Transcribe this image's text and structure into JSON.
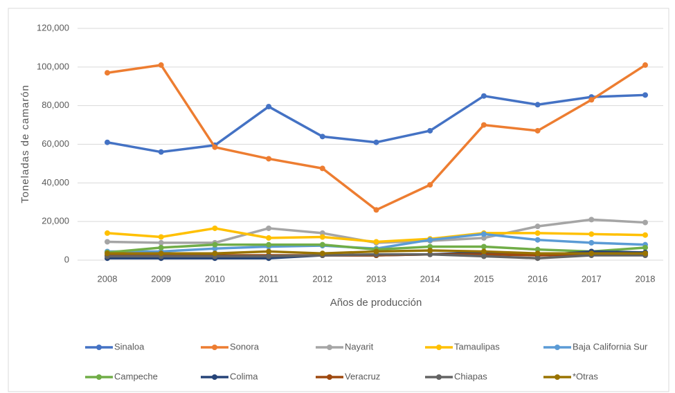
{
  "chart_data": {
    "type": "line",
    "x_label": "Años de producción",
    "y_label": "Toneladas de camarón",
    "categories": [
      "2008",
      "2009",
      "2010",
      "2011",
      "2012",
      "2013",
      "2014",
      "2015",
      "2016",
      "2017",
      "2018"
    ],
    "series": [
      {
        "name": "Sinaloa",
        "color": "#4472c4",
        "values": [
          61000,
          56000,
          59500,
          79500,
          64000,
          61000,
          67000,
          85000,
          80500,
          84500,
          85500
        ]
      },
      {
        "name": "Sonora",
        "color": "#ed7d31",
        "values": [
          97000,
          101000,
          58500,
          52500,
          47500,
          26000,
          39000,
          70000,
          67000,
          83000,
          101000
        ]
      },
      {
        "name": "Nayarit",
        "color": "#a5a5a5",
        "values": [
          9500,
          9000,
          9000,
          16500,
          14000,
          9000,
          10000,
          11500,
          17500,
          21000,
          19500
        ]
      },
      {
        "name": "Tamaulipas",
        "color": "#ffc000",
        "values": [
          14000,
          12000,
          16500,
          11500,
          12000,
          9500,
          11000,
          14000,
          14000,
          13500,
          13000
        ]
      },
      {
        "name": "Baja California Sur",
        "color": "#5b9bd5",
        "values": [
          4500,
          4500,
          6000,
          7000,
          7500,
          6000,
          10500,
          13500,
          10500,
          9000,
          8000
        ]
      },
      {
        "name": "Campeche",
        "color": "#70ad47",
        "values": [
          4000,
          6500,
          8000,
          8000,
          8000,
          5500,
          7000,
          7000,
          5500,
          4500,
          6500
        ]
      },
      {
        "name": "Colima",
        "color": "#264478",
        "values": [
          1000,
          1000,
          1000,
          1000,
          2500,
          2500,
          3000,
          4000,
          2500,
          4500,
          4000
        ]
      },
      {
        "name": "Veracruz",
        "color": "#9e480e",
        "values": [
          2500,
          2500,
          2500,
          2500,
          2500,
          2500,
          3000,
          3000,
          2500,
          3000,
          3000
        ]
      },
      {
        "name": "Chiapas",
        "color": "#636363",
        "values": [
          2000,
          2000,
          2000,
          2000,
          2500,
          3000,
          3000,
          2000,
          1000,
          2500,
          2500
        ]
      },
      {
        "name": "*Otras",
        "color": "#997300",
        "values": [
          3500,
          3500,
          3500,
          4500,
          3500,
          4500,
          5000,
          4500,
          3500,
          3500,
          3500
        ]
      }
    ],
    "ylim": [
      0,
      120000
    ],
    "yticks": [
      0,
      {
        "value": 20000,
        "label": "20,000"
      },
      {
        "value": 40000,
        "label": "40,000"
      },
      {
        "value": 60000,
        "label": "60,000"
      },
      {
        "value": 80000,
        "label": "80,000"
      },
      {
        "value": 100000,
        "label": "100,000"
      },
      {
        "value": 120000,
        "label": "120,000"
      }
    ],
    "grid": true,
    "legend": "bottom"
  }
}
